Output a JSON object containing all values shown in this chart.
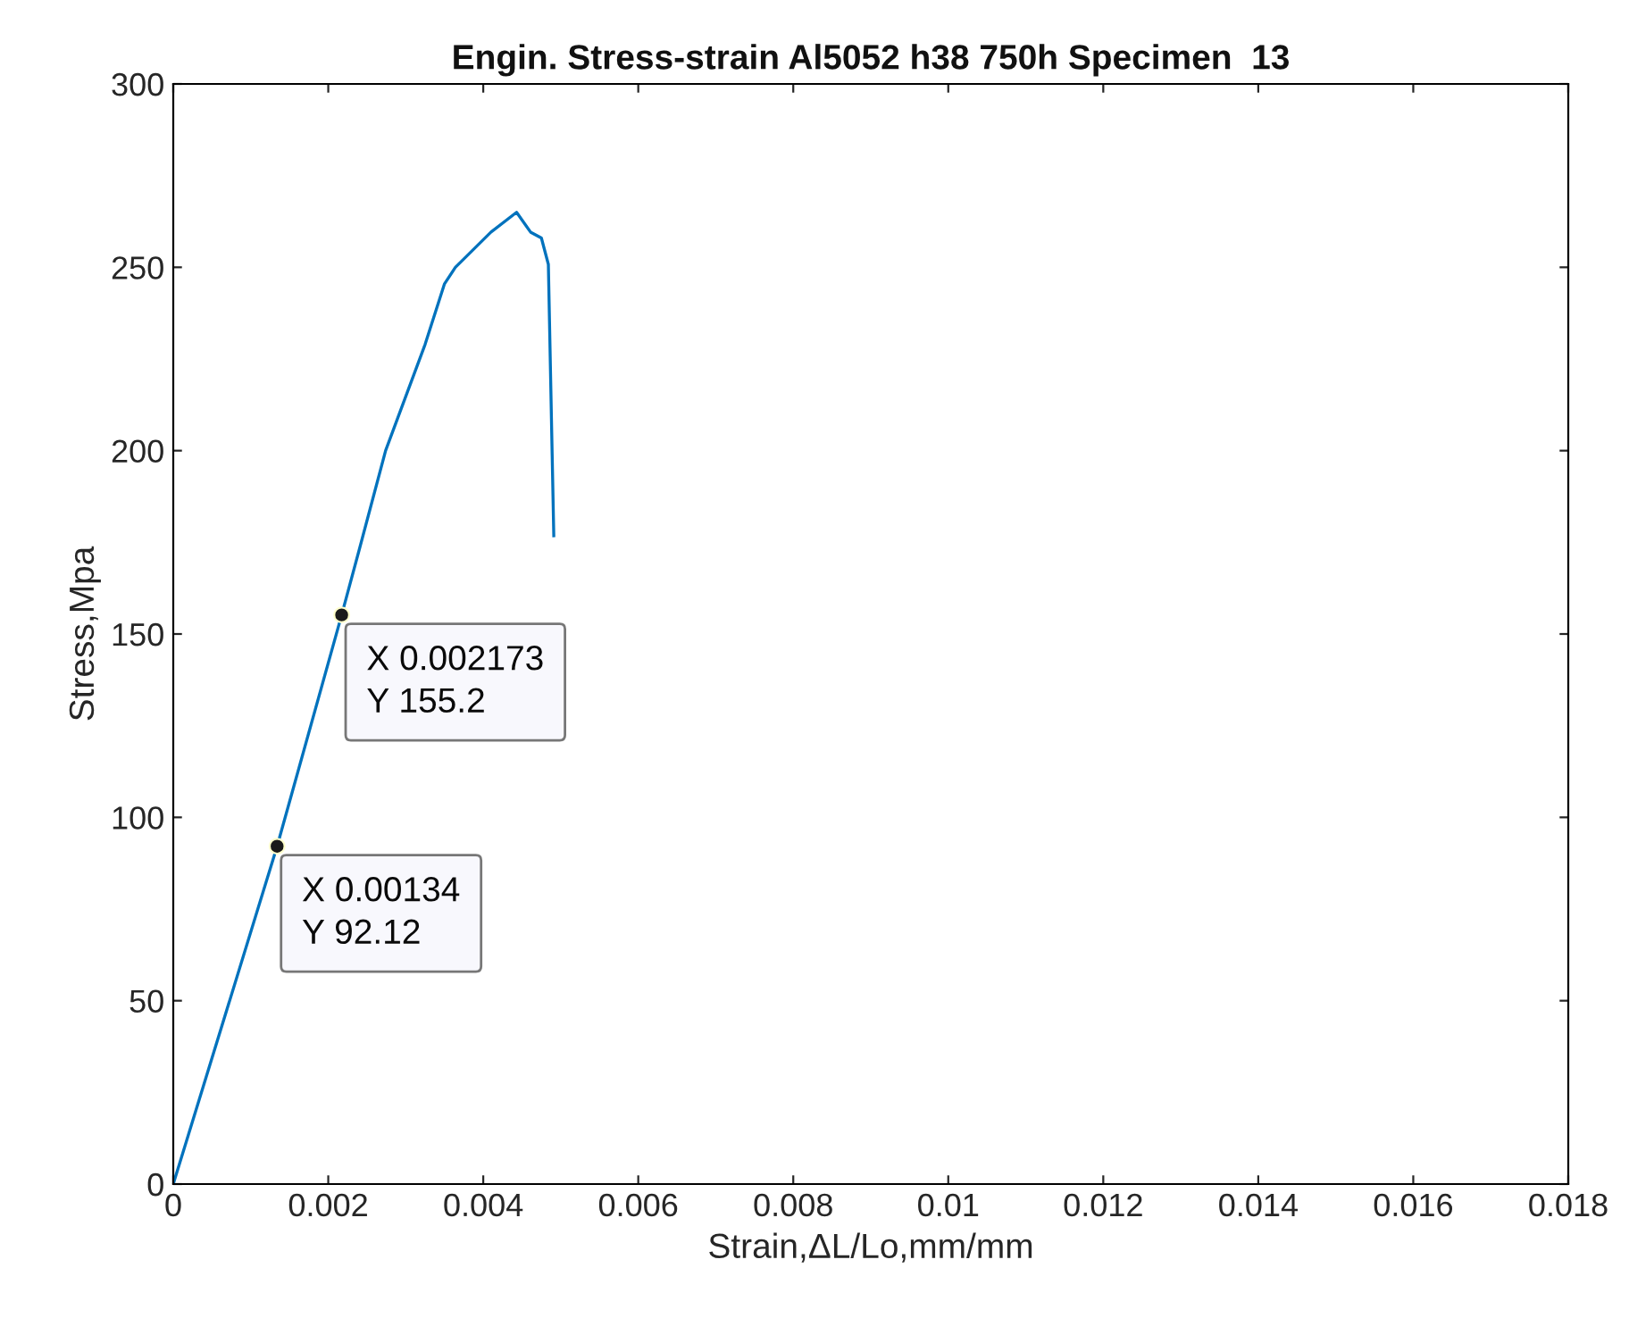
{
  "chart_data": {
    "type": "line",
    "title": "Engin. Stress-strain Al5052 h38 750h Specimen  13",
    "xlabel": "Strain,ΔL/Lo,mm/mm",
    "ylabel": "Stress,Mpa",
    "series": [
      {
        "color": "#0072bd",
        "x": [
          0,
          0.00134,
          0.002173,
          0.0024,
          0.00274,
          0.00325,
          0.0035,
          0.00364,
          0.0041,
          0.00443,
          0.00461,
          0.00475,
          0.00484,
          0.00491
        ],
        "values": [
          0,
          92.12,
          155.2,
          173,
          200,
          229,
          245.5,
          250,
          259.6,
          265,
          259.6,
          258,
          250.8,
          176.8
        ]
      }
    ],
    "annotations": [
      {
        "text": "X 0.002173\nY 155.2",
        "x": 0.002173,
        "y": 155.2
      },
      {
        "text": "X 0.00134\nY 92.12",
        "x": 0.00134,
        "y": 92.12
      }
    ],
    "xlim": [
      0,
      0.018
    ],
    "xticks": [
      0,
      0.002,
      0.004,
      0.006,
      0.008,
      0.01,
      0.012,
      0.014,
      0.016,
      0.018
    ],
    "ylim": [
      0,
      300
    ],
    "yticks": [
      0,
      50,
      100,
      150,
      200,
      250,
      300
    ],
    "grid": false,
    "legend": false
  }
}
